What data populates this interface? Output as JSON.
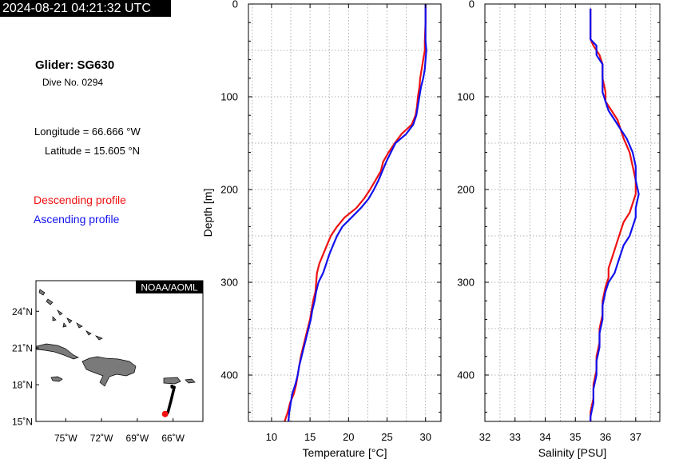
{
  "header": {
    "timestamp": "2024-08-21 04:21:32 UTC"
  },
  "info": {
    "glider": "Glider: SG630",
    "dive": "Dive No. 0294",
    "longitude": "Longitude = 66.666 °W",
    "latitude": "Latitude = 15.605 °N"
  },
  "legend": {
    "descending": "Descending profile",
    "ascending": "Ascending profile",
    "colors": {
      "descending": "#ee1111",
      "ascending": "#1111ee"
    }
  },
  "map": {
    "credit": "NOAA/AOML",
    "lat_ticks": [
      "24˚N",
      "21˚N",
      "18˚N",
      "15˚N"
    ],
    "lon_ticks": [
      "75˚W",
      "72˚W",
      "69˚W",
      "66˚W"
    ],
    "lon_range": [
      -77.5,
      -63.5
    ],
    "lat_range": [
      15,
      26.5
    ],
    "track": [
      [
        -66.1,
        18.0
      ],
      [
        -66.1,
        17.8
      ],
      [
        -65.9,
        17.8
      ],
      [
        -66.2,
        16.6
      ],
      [
        -66.45,
        15.7
      ],
      [
        -66.67,
        15.6
      ]
    ],
    "glider_position": [
      -66.666,
      15.605
    ]
  },
  "chart_data": [
    {
      "type": "line",
      "xlabel": "Temperature [°C]",
      "ylabel": "Depth [m]",
      "xlim": [
        7,
        32
      ],
      "ylim": [
        450,
        0
      ],
      "x_ticks": [
        10,
        15,
        20,
        25,
        30
      ],
      "y_ticks": [
        0,
        100,
        200,
        300,
        400
      ],
      "grid": true,
      "series": [
        {
          "name": "Descending profile",
          "color": "#ee1111",
          "points": [
            [
              30.0,
              0
            ],
            [
              30.0,
              20
            ],
            [
              29.9,
              40
            ],
            [
              29.9,
              50
            ],
            [
              29.7,
              60
            ],
            [
              29.5,
              70
            ],
            [
              29.3,
              80
            ],
            [
              29.2,
              90
            ],
            [
              29.0,
              100
            ],
            [
              28.9,
              110
            ],
            [
              28.7,
              120
            ],
            [
              28.2,
              130
            ],
            [
              26.9,
              140
            ],
            [
              26.0,
              150
            ],
            [
              25.2,
              160
            ],
            [
              24.5,
              170
            ],
            [
              24.2,
              180
            ],
            [
              23.5,
              190
            ],
            [
              22.8,
              200
            ],
            [
              22.0,
              210
            ],
            [
              21.0,
              220
            ],
            [
              19.5,
              230
            ],
            [
              18.5,
              240
            ],
            [
              17.7,
              250
            ],
            [
              17.2,
              260
            ],
            [
              16.7,
              270
            ],
            [
              16.2,
              280
            ],
            [
              15.9,
              290
            ],
            [
              15.8,
              300
            ],
            [
              15.7,
              310
            ],
            [
              15.4,
              320
            ],
            [
              15.2,
              330
            ],
            [
              15.0,
              340
            ],
            [
              14.7,
              350
            ],
            [
              14.4,
              360
            ],
            [
              14.1,
              370
            ],
            [
              13.8,
              380
            ],
            [
              13.6,
              390
            ],
            [
              13.4,
              400
            ],
            [
              13.2,
              410
            ],
            [
              12.9,
              420
            ],
            [
              12.4,
              430
            ],
            [
              12.1,
              440
            ],
            [
              11.7,
              450
            ]
          ]
        },
        {
          "name": "Ascending profile",
          "color": "#1111ee",
          "points": [
            [
              30.0,
              0
            ],
            [
              30.0,
              20
            ],
            [
              30.0,
              40
            ],
            [
              30.1,
              50
            ],
            [
              30.0,
              60
            ],
            [
              29.9,
              70
            ],
            [
              29.7,
              80
            ],
            [
              29.4,
              90
            ],
            [
              29.2,
              100
            ],
            [
              29.0,
              110
            ],
            [
              28.8,
              120
            ],
            [
              28.4,
              130
            ],
            [
              27.5,
              140
            ],
            [
              26.1,
              150
            ],
            [
              25.5,
              160
            ],
            [
              24.9,
              170
            ],
            [
              24.4,
              180
            ],
            [
              23.9,
              190
            ],
            [
              23.3,
              200
            ],
            [
              22.6,
              210
            ],
            [
              21.6,
              220
            ],
            [
              20.4,
              230
            ],
            [
              19.2,
              240
            ],
            [
              18.5,
              250
            ],
            [
              18.0,
              260
            ],
            [
              17.5,
              270
            ],
            [
              17.1,
              280
            ],
            [
              16.7,
              290
            ],
            [
              16.1,
              300
            ],
            [
              15.8,
              310
            ],
            [
              15.6,
              320
            ],
            [
              15.3,
              330
            ],
            [
              15.1,
              340
            ],
            [
              14.8,
              350
            ],
            [
              14.5,
              360
            ],
            [
              14.2,
              370
            ],
            [
              13.9,
              380
            ],
            [
              13.6,
              390
            ],
            [
              13.4,
              400
            ],
            [
              13.1,
              410
            ],
            [
              12.7,
              420
            ],
            [
              12.5,
              430
            ],
            [
              12.3,
              440
            ],
            [
              12.2,
              450
            ]
          ]
        }
      ]
    },
    {
      "type": "line",
      "xlabel": "Salinity [PSU]",
      "ylabel": "",
      "xlim": [
        32,
        37.8
      ],
      "ylim": [
        450,
        0
      ],
      "x_ticks": [
        32,
        33,
        34,
        35,
        36,
        37
      ],
      "y_ticks": [
        0,
        100,
        200,
        300,
        400
      ],
      "grid": true,
      "series": [
        {
          "name": "Descending profile",
          "color": "#ee1111",
          "points": [
            [
              35.5,
              5
            ],
            [
              35.5,
              20
            ],
            [
              35.5,
              38
            ],
            [
              35.6,
              45
            ],
            [
              35.8,
              55
            ],
            [
              35.9,
              65
            ],
            [
              35.9,
              80
            ],
            [
              36.0,
              95
            ],
            [
              36.0,
              105
            ],
            [
              36.2,
              115
            ],
            [
              36.4,
              125
            ],
            [
              36.5,
              135
            ],
            [
              36.6,
              145
            ],
            [
              36.8,
              160
            ],
            [
              36.9,
              175
            ],
            [
              37.0,
              190
            ],
            [
              37.0,
              205
            ],
            [
              36.9,
              215
            ],
            [
              36.8,
              225
            ],
            [
              36.6,
              235
            ],
            [
              36.5,
              245
            ],
            [
              36.4,
              255
            ],
            [
              36.3,
              265
            ],
            [
              36.2,
              275
            ],
            [
              36.1,
              285
            ],
            [
              36.1,
              295
            ],
            [
              36.0,
              305
            ],
            [
              35.9,
              320
            ],
            [
              35.9,
              335
            ],
            [
              35.8,
              350
            ],
            [
              35.8,
              365
            ],
            [
              35.7,
              380
            ],
            [
              35.7,
              395
            ],
            [
              35.6,
              410
            ],
            [
              35.6,
              425
            ],
            [
              35.5,
              440
            ],
            [
              35.5,
              450
            ]
          ]
        },
        {
          "name": "Ascending profile",
          "color": "#1111ee",
          "points": [
            [
              35.5,
              5
            ],
            [
              35.5,
              20
            ],
            [
              35.5,
              38
            ],
            [
              35.7,
              45
            ],
            [
              35.7,
              55
            ],
            [
              35.9,
              65
            ],
            [
              35.9,
              80
            ],
            [
              35.9,
              95
            ],
            [
              36.0,
              105
            ],
            [
              36.1,
              115
            ],
            [
              36.3,
              125
            ],
            [
              36.5,
              135
            ],
            [
              36.7,
              145
            ],
            [
              36.9,
              160
            ],
            [
              37.0,
              175
            ],
            [
              37.0,
              190
            ],
            [
              37.1,
              205
            ],
            [
              37.0,
              220
            ],
            [
              37.0,
              230
            ],
            [
              36.9,
              240
            ],
            [
              36.8,
              250
            ],
            [
              36.6,
              260
            ],
            [
              36.5,
              270
            ],
            [
              36.4,
              280
            ],
            [
              36.3,
              290
            ],
            [
              36.1,
              300
            ],
            [
              36.0,
              310
            ],
            [
              35.9,
              325
            ],
            [
              35.9,
              340
            ],
            [
              35.8,
              355
            ],
            [
              35.8,
              370
            ],
            [
              35.7,
              385
            ],
            [
              35.7,
              400
            ],
            [
              35.6,
              415
            ],
            [
              35.6,
              430
            ],
            [
              35.5,
              445
            ],
            [
              35.5,
              450
            ]
          ]
        }
      ]
    }
  ]
}
